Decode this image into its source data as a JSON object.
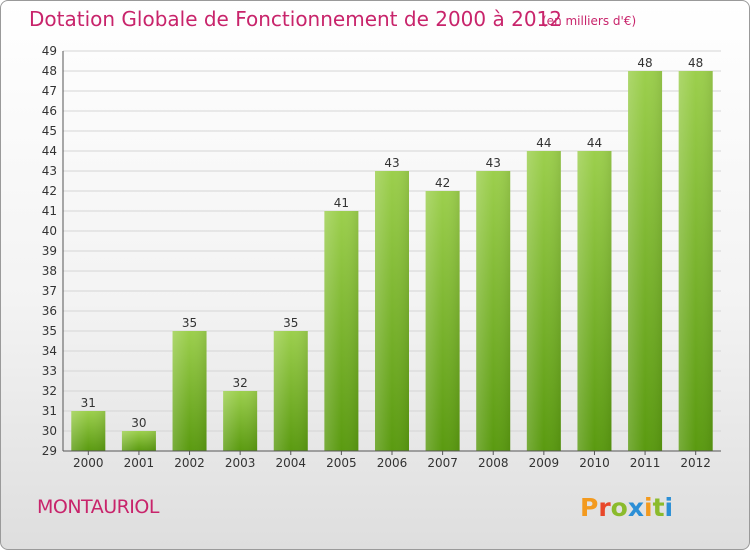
{
  "header": {
    "title": "Dotation Globale de Fonctionnement de 2000 à 2012",
    "unit": "(en milliers d'€)"
  },
  "footer": {
    "commune": "MONTAURIOL",
    "brand": "Proxiti"
  },
  "colors": {
    "title": "#c8246b",
    "bar_top": "#9ccf4d",
    "bar_bottom": "#5a9a10",
    "grid": "#d5d5d5"
  },
  "chart_data": {
    "type": "bar",
    "title": "Dotation Globale de Fonctionnement de 2000 à 2012",
    "subtitle": "(en milliers d'€)",
    "xlabel": "",
    "ylabel": "",
    "categories": [
      "2000",
      "2001",
      "2002",
      "2003",
      "2004",
      "2005",
      "2006",
      "2007",
      "2008",
      "2009",
      "2010",
      "2011",
      "2012"
    ],
    "values": [
      31,
      30,
      35,
      32,
      35,
      41,
      43,
      42,
      43,
      44,
      44,
      48,
      48
    ],
    "ylim": [
      29,
      49
    ],
    "yticks": [
      29,
      30,
      31,
      32,
      33,
      34,
      35,
      36,
      37,
      38,
      39,
      40,
      41,
      42,
      43,
      44,
      45,
      46,
      47,
      48,
      49
    ],
    "grid": true,
    "data_labels": true
  }
}
